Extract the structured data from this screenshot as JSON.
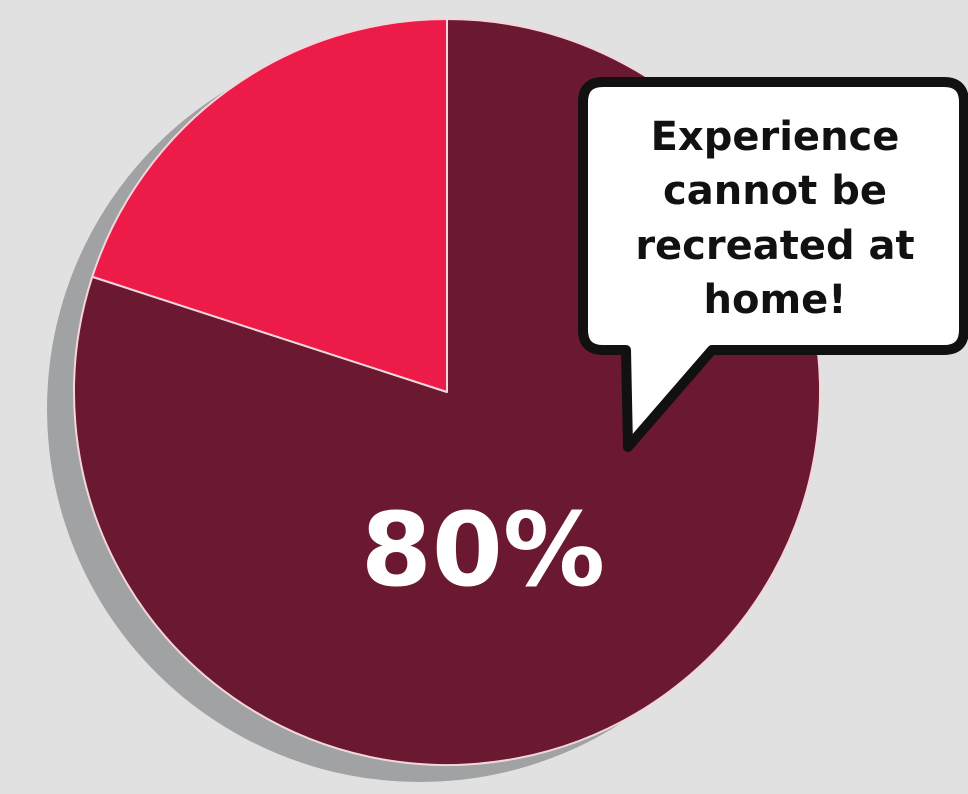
{
  "chart_data": {
    "type": "pie",
    "slices": [
      {
        "label": "80%",
        "value": 80,
        "color": "#6b1930"
      },
      {
        "label": "",
        "value": 20,
        "color": "#ec1b48"
      }
    ],
    "shadow_color": "#a0a2a3",
    "slice_border_color": "#f3d6dc",
    "callout": {
      "lines": [
        "Experience",
        "cannot be",
        "recreated at",
        "home!"
      ],
      "fill": "#ffffff",
      "stroke": "#111111",
      "text_color": "#111111"
    }
  }
}
